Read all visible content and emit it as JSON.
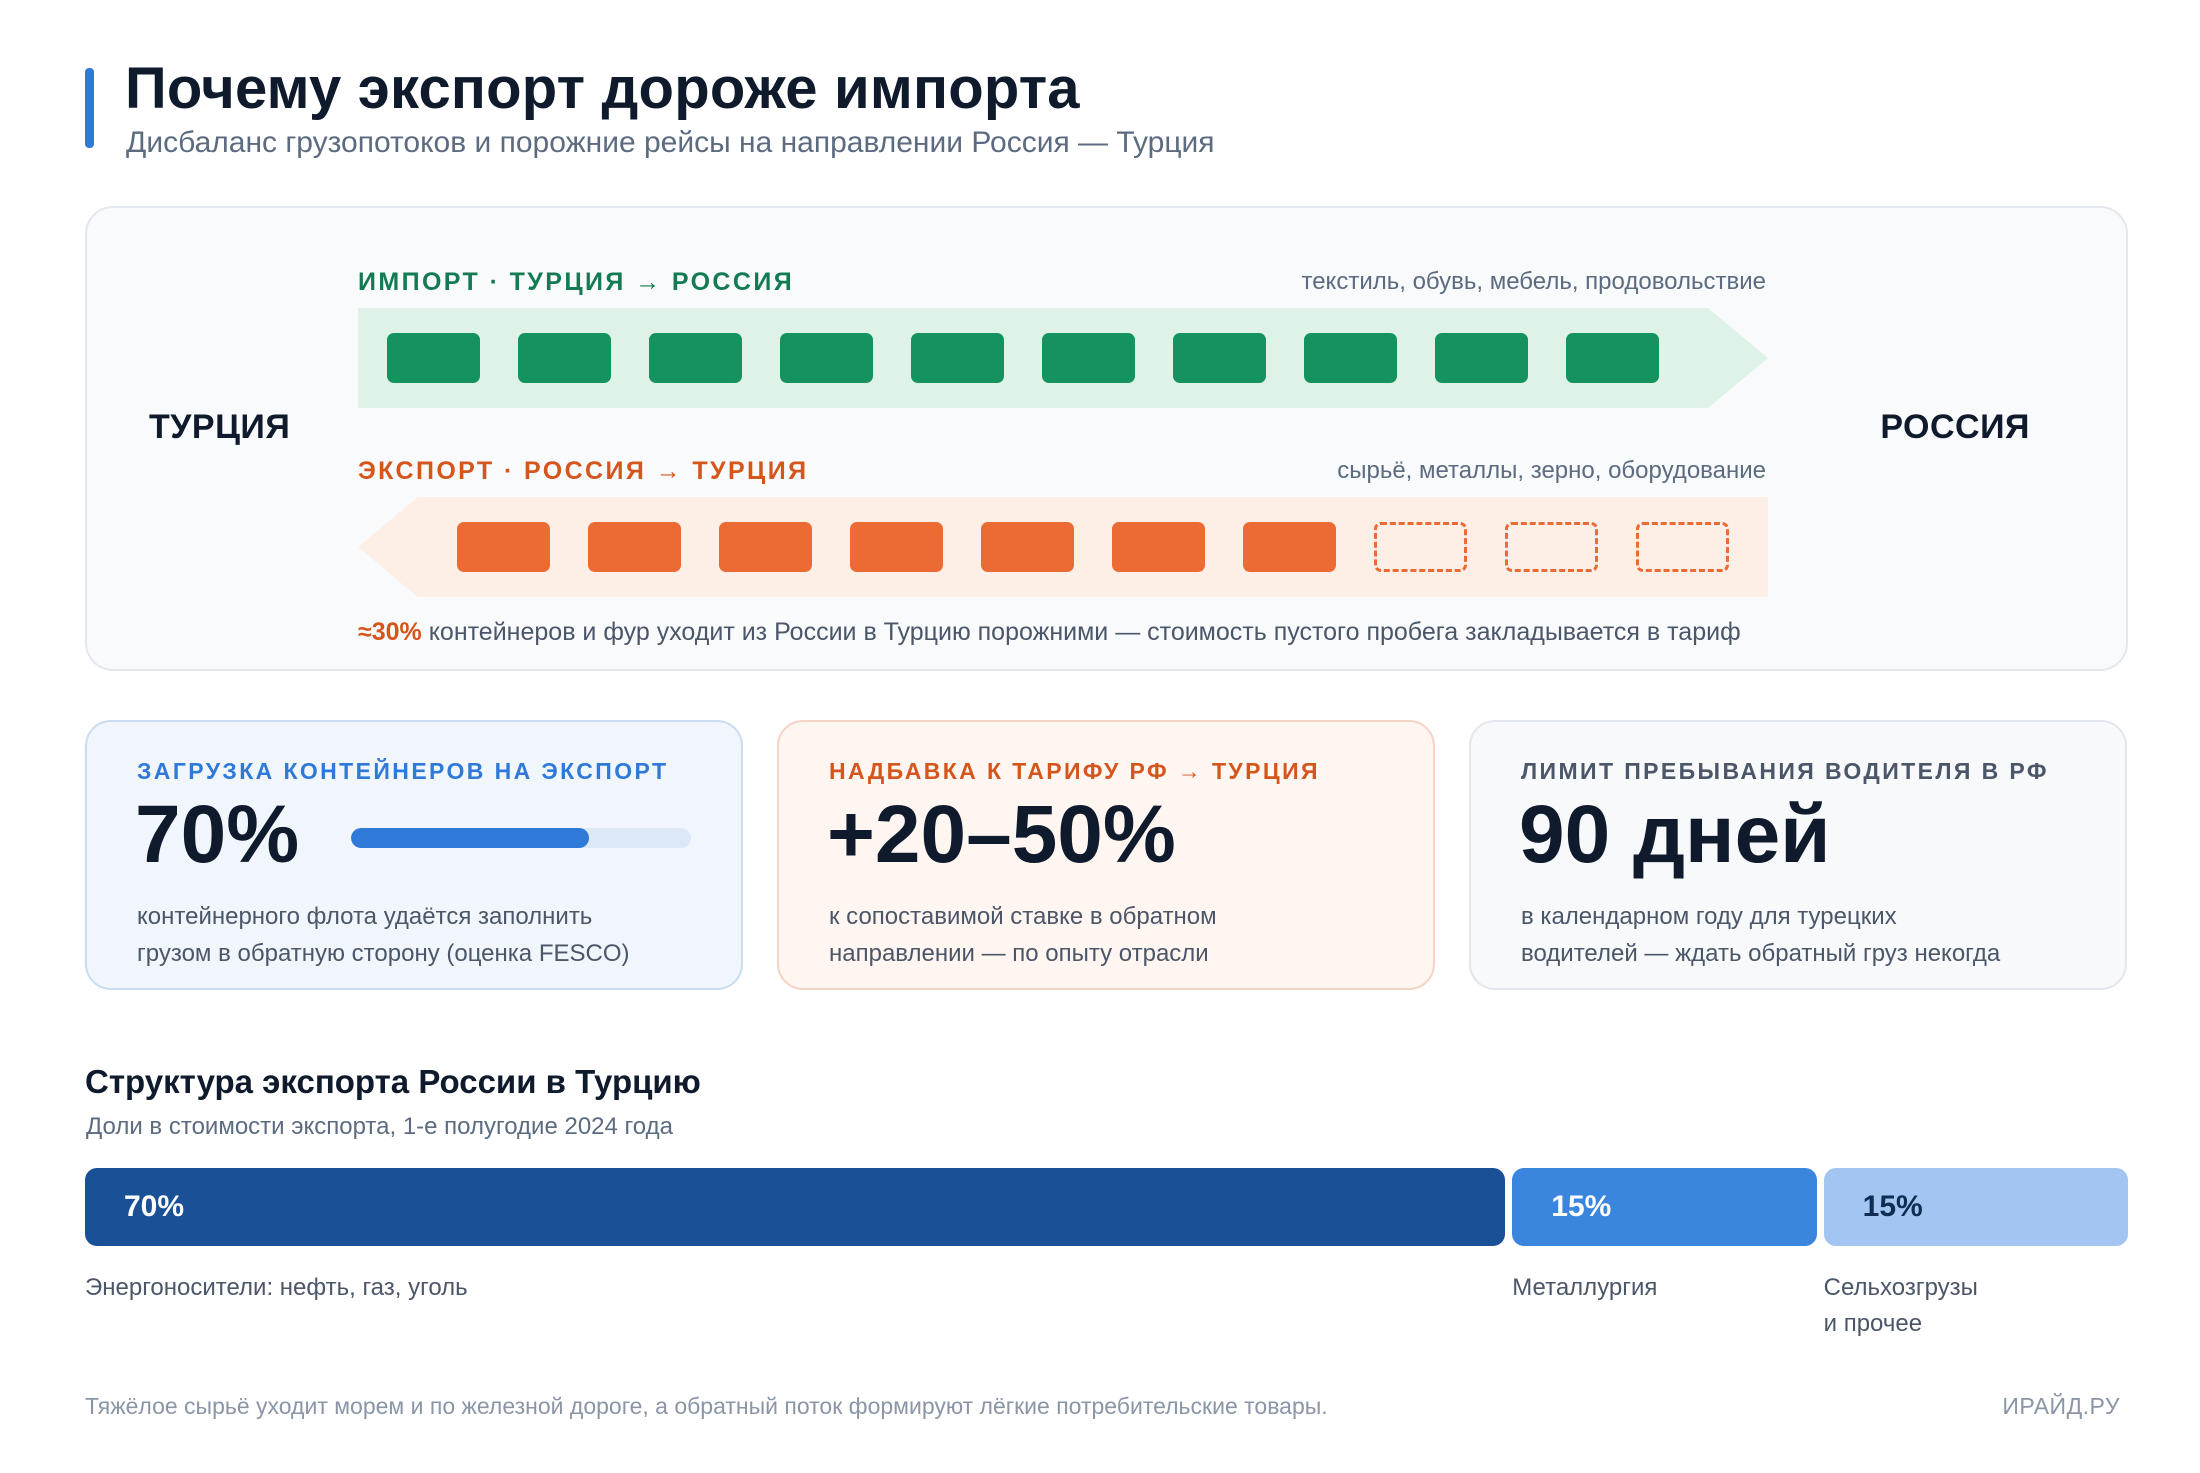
{
  "header": {
    "title": "Почему экспорт дороже импорта",
    "subtitle": "Дисбаланс грузопотоков и порожние рейсы на направлении Россия — Турция"
  },
  "flow": {
    "left_label": "ТУРЦИЯ",
    "right_label": "РОССИЯ",
    "import": {
      "title": "ИМПОРТ · ТУРЦИЯ → РОССИЯ",
      "note": "текстиль, обувь, мебель, продовольствие",
      "loaded": 10,
      "empty": 0
    },
    "export": {
      "title": "ЭКСПОРТ · РОССИЯ → ТУРЦИЯ",
      "note": "сырьё, металлы, зерно, оборудование",
      "loaded": 7,
      "empty": 3
    },
    "footer_highlight": "≈30%",
    "footer_text": " контейнеров и фур уходит из России в Турцию порожними — стоимость пустого пробега закладывается в тариф",
    "colors": {
      "import_box": "#14935f",
      "import_lane": "#dff2e8",
      "export_box": "#ec6a33",
      "export_lane": "#fdeee6"
    }
  },
  "cards": [
    {
      "label": "ЗАГРУЗКА КОНТЕЙНЕРОВ НА ЭКСПОРТ",
      "value": "70%",
      "progress": 0.7,
      "desc_line1": "контейнерного флота удаётся заполнить",
      "desc_line2": "грузом в обратную сторону (оценка FESCO)"
    },
    {
      "label": "НАДБАВКА К ТАРИФУ РФ → ТУРЦИЯ",
      "value": "+20–50%",
      "desc_line1": "к сопоставимой ставке в обратном",
      "desc_line2": "направлении — по опыту отрасли"
    },
    {
      "label": "ЛИМИТ ПРЕБЫВАНИЯ ВОДИТЕЛЯ В РФ",
      "value": "90 дней",
      "desc_line1": "в календарном году для турецких",
      "desc_line2": "водителей — ждать обратный груз некогда"
    }
  ],
  "structure": {
    "title": "Структура экспорта России в Турцию",
    "subtitle": "Доли в стоимости экспорта, 1-е полугодие 2024 года",
    "segments": [
      {
        "value": 70,
        "value_label": "70%",
        "label_line1": "Энергоносители: нефть, газ, уголь",
        "label_line2": "",
        "color": "#1a5196",
        "text_color": "#ffffff"
      },
      {
        "value": 15,
        "value_label": "15%",
        "label_line1": "Металлургия",
        "label_line2": "",
        "color": "#3a86df",
        "text_color": "#ffffff"
      },
      {
        "value": 15,
        "value_label": "15%",
        "label_line1": "Сельхозгрузы",
        "label_line2": "и прочее",
        "color": "#a2c5f2",
        "text_color": "#0f2c52"
      }
    ]
  },
  "footer": {
    "note": "Тяжёлое сырьё уходит морем и по железной дороге, а обратный поток формируют лёгкие потребительские товары.",
    "brand": "ИРАЙД.РУ"
  }
}
